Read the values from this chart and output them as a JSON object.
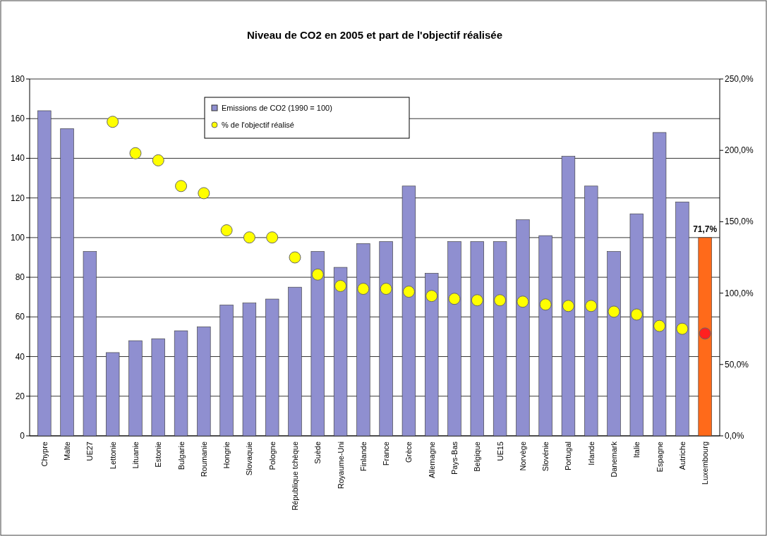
{
  "chart_data": {
    "type": "bar",
    "title": "Niveau de CO2 en 2005 et part de l'objectif réalisée",
    "categories": [
      "Chypre",
      "Malte",
      "UE27",
      "Lettonie",
      "Lituanie",
      "Estonie",
      "Bulgarie",
      "Roumanie",
      "Hongrie",
      "Slovaquie",
      "Pologne",
      "République tchèque",
      "Suède",
      "Royaume-Uni",
      "Finlande",
      "France",
      "Grèce",
      "Allemagne",
      "Pays-Bas",
      "Belgique",
      "UE15",
      "Norvège",
      "Slovénie",
      "Portugal",
      "Irlande",
      "Danemark",
      "Italie",
      "Espagne",
      "Autriche",
      "Luxembourg"
    ],
    "series": [
      {
        "name": "Emissions de CO2 (1990 = 100)",
        "color": "#8f8fd0",
        "colors": [
          "#8f8fd0",
          "#8f8fd0",
          "#8f8fd0",
          "#8f8fd0",
          "#8f8fd0",
          "#8f8fd0",
          "#8f8fd0",
          "#8f8fd0",
          "#8f8fd0",
          "#8f8fd0",
          "#8f8fd0",
          "#8f8fd0",
          "#8f8fd0",
          "#8f8fd0",
          "#8f8fd0",
          "#8f8fd0",
          "#8f8fd0",
          "#8f8fd0",
          "#8f8fd0",
          "#8f8fd0",
          "#8f8fd0",
          "#8f8fd0",
          "#8f8fd0",
          "#8f8fd0",
          "#8f8fd0",
          "#8f8fd0",
          "#8f8fd0",
          "#8f8fd0",
          "#8f8fd0",
          "#ff6a1a"
        ],
        "values": [
          164,
          155,
          93,
          42,
          48,
          49,
          53,
          55,
          66,
          67,
          69,
          75,
          93,
          85,
          97,
          98,
          126,
          82,
          98,
          98,
          98,
          109,
          101,
          141,
          126,
          93,
          112,
          153,
          118,
          100
        ]
      },
      {
        "name": "% de l'objectif réalisé",
        "type": "scatter",
        "axis": "y2",
        "marker": "circle",
        "color": "#ffff00",
        "colors": [
          "#ffff00",
          "#ffff00",
          "#ffff00",
          "#ffff00",
          "#ffff00",
          "#ffff00",
          "#ffff00",
          "#ffff00",
          "#ffff00",
          "#ffff00",
          "#ffff00",
          "#ffff00",
          "#ffff00",
          "#ffff00",
          "#ffff00",
          "#ffff00",
          "#ffff00",
          "#ffff00",
          "#ffff00",
          "#ffff00",
          "#ffff00",
          "#ffff00",
          "#ffff00",
          "#ffff00",
          "#ffff00",
          "#ffff00",
          "#ffff00",
          "#ffff00",
          "#ffff00",
          "#ff2020"
        ],
        "values": [
          null,
          null,
          null,
          220,
          198,
          193,
          175,
          170,
          144,
          139,
          139,
          125,
          113,
          105,
          103,
          103,
          101,
          98,
          96,
          95,
          95,
          94,
          92,
          91,
          91,
          87,
          85,
          77,
          75,
          71.7
        ]
      }
    ],
    "ylim": [
      0,
      180
    ],
    "yticks": [
      0,
      20,
      40,
      60,
      80,
      100,
      120,
      140,
      160,
      180
    ],
    "y2lim": [
      0,
      250
    ],
    "y2ticks": [
      {
        "value": 0,
        "label": "0,0%"
      },
      {
        "value": 50,
        "label": "50,0%"
      },
      {
        "value": 100,
        "label": "100,0%"
      },
      {
        "value": 150,
        "label": "150,0%"
      },
      {
        "value": 200,
        "label": "200,0%"
      },
      {
        "value": 250,
        "label": "250,0%"
      }
    ],
    "annotations": [
      "71,7%"
    ],
    "grid": "y",
    "legend": "top"
  }
}
